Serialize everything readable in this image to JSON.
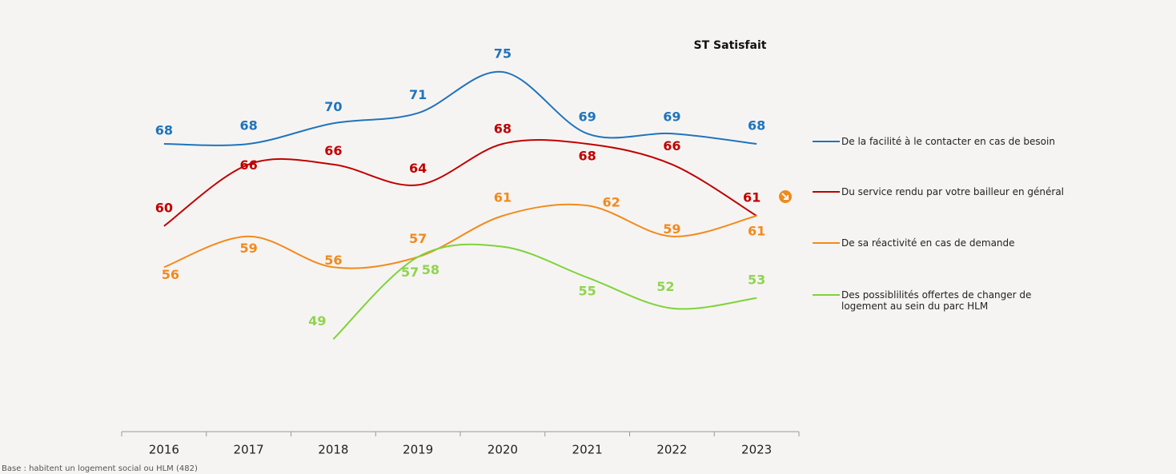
{
  "chart_data": {
    "type": "line",
    "annotation": "ST Satisfait",
    "note": "Base : habitent un logement social ou HLM (482)",
    "categories": [
      "2016",
      "2017",
      "2018",
      "2019",
      "2020",
      "2021",
      "2022",
      "2023"
    ],
    "ylim": [
      40,
      82
    ],
    "series": [
      {
        "name": "De la facilité à le contacter en cas de besoin",
        "color": "#1f74bd",
        "values": [
          68,
          68,
          70,
          71,
          75,
          69,
          69,
          68
        ]
      },
      {
        "name": "Du service rendu par votre bailleur en général",
        "color": "#c00000",
        "values": [
          60,
          66,
          66,
          64,
          68,
          68,
          66,
          61
        ]
      },
      {
        "name": "De sa réactivité en cas de demande",
        "color": "#f28a1c",
        "values": [
          56,
          59,
          56,
          57,
          61,
          62,
          59,
          61
        ]
      },
      {
        "name": "Des possiblilités offertes de changer de logement au sein du parc HLM",
        "color": "#7ed33a",
        "values": [
          null,
          null,
          49,
          57,
          58,
          55,
          52,
          53
        ]
      }
    ]
  }
}
